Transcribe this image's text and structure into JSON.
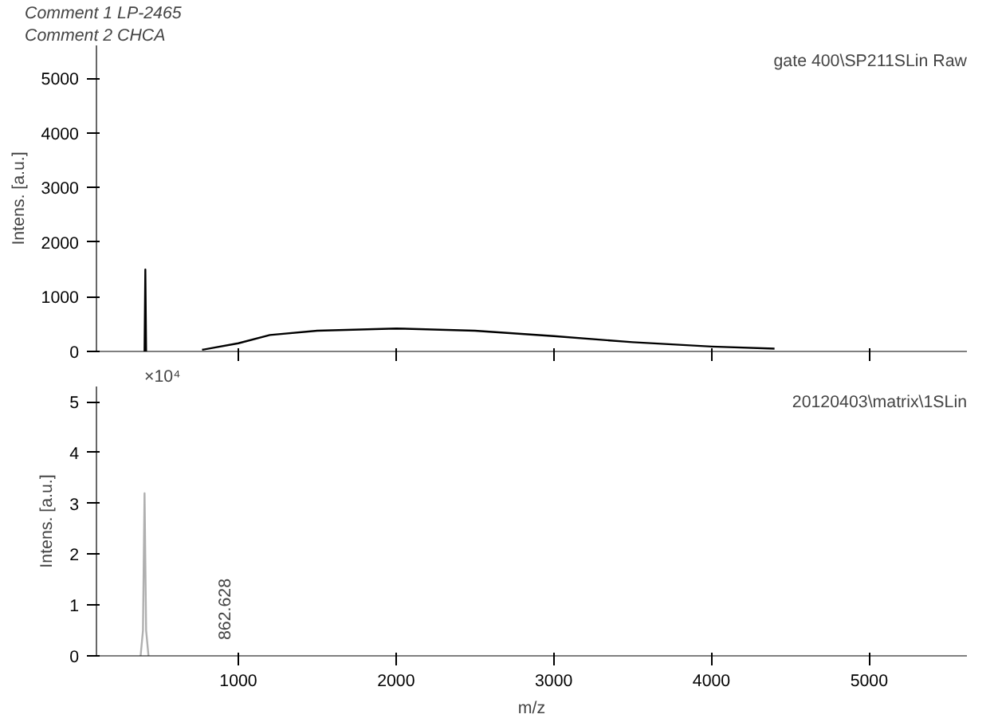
{
  "chart_data": [
    {
      "type": "line",
      "title": "gate 400\\SP211SLin Raw",
      "ylabel": "Intens. [a.u.]",
      "annotations": [
        "Comment 1    LP-2465",
        "Comment 2    CHCA"
      ],
      "xlim": [
        100,
        5620
      ],
      "xticks": [
        1000,
        2000,
        3000,
        4000,
        5000
      ],
      "ylim": [
        0,
        5600
      ],
      "yticks": [
        0,
        1000,
        2000,
        3000,
        4000,
        5000
      ],
      "tick_labels": "y",
      "grid": false,
      "series": [
        {
          "color": "#000000",
          "x": [
            405,
            410,
            415,
            null,
            770,
            1000,
            1200,
            1500,
            2000,
            2500,
            3000,
            3500,
            4000,
            4400
          ],
          "values": [
            0,
            1500,
            0,
            null,
            30,
            150,
            300,
            380,
            420,
            380,
            280,
            170,
            90,
            50
          ]
        }
      ]
    },
    {
      "type": "line",
      "title": "20120403\\matrix\\1SLin",
      "ylabel": "Intens. [a.u.]",
      "xlabel": "m/z",
      "annotations": [
        "×10⁴",
        "862.628"
      ],
      "xlim": [
        100,
        5620
      ],
      "xticks": [
        1000,
        2000,
        3000,
        4000,
        5000
      ],
      "ylim": [
        0,
        5.3
      ],
      "yticks": [
        0,
        1,
        2,
        3,
        4,
        5
      ],
      "grid": false,
      "series": [
        {
          "color": "#b0b0b0",
          "x": [
            380,
            395,
            405,
            415,
            430
          ],
          "values": [
            0,
            0.5,
            3.2,
            0.5,
            0
          ]
        }
      ]
    }
  ]
}
